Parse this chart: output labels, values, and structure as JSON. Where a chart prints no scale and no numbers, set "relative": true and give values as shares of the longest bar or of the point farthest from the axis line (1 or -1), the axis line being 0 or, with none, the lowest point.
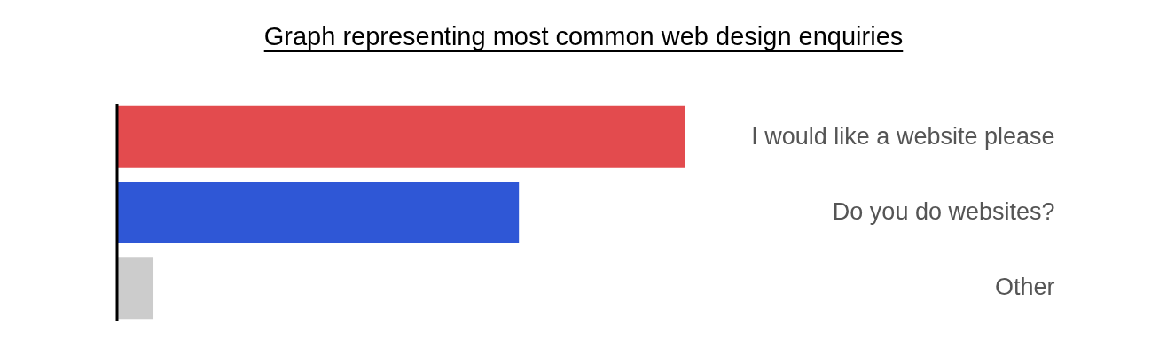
{
  "chart_data": {
    "type": "bar",
    "orientation": "horizontal",
    "relative": true,
    "title": "Graph representing most common web design enquiries",
    "categories": [
      "I would like a website please",
      "Do you do websites?",
      "Other"
    ],
    "values": [
      1,
      0.707,
      0.064
    ],
    "colors": [
      "#e34b4e",
      "#2f57d6",
      "#cccccc"
    ]
  }
}
